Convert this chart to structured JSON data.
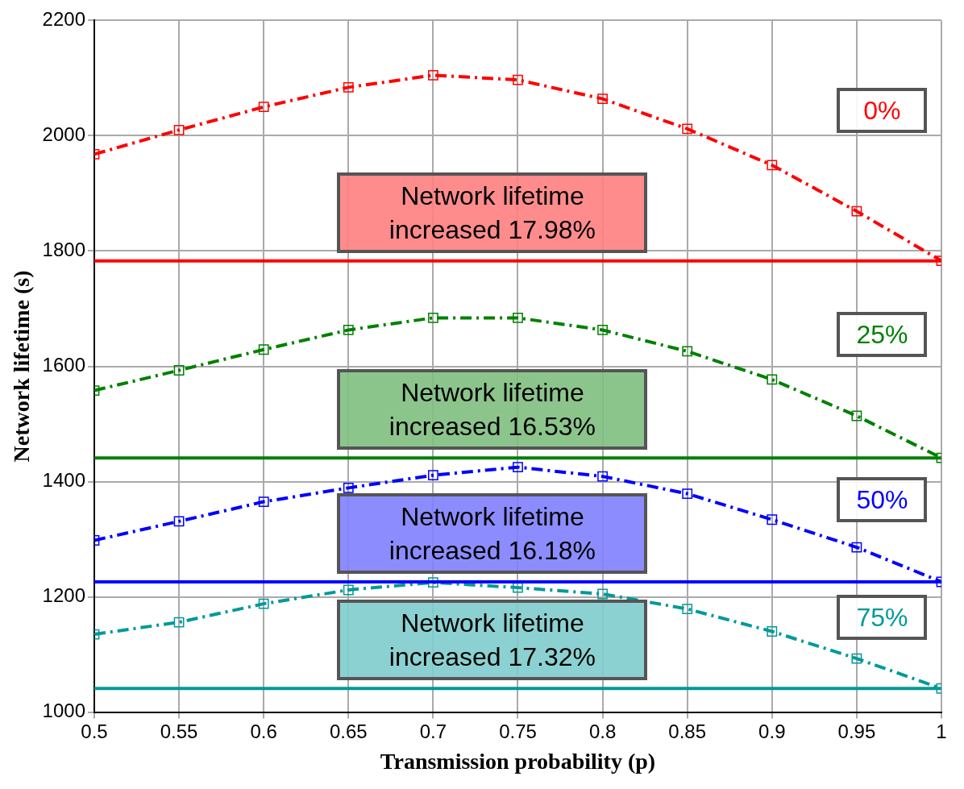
{
  "chart_data": {
    "type": "line",
    "xlabel": "Transmission probability (p)",
    "ylabel": "Network lifetime (s)",
    "x": [
      0.5,
      0.55,
      0.6,
      0.65,
      0.7,
      0.75,
      0.8,
      0.85,
      0.9,
      0.95,
      1
    ],
    "series": [
      {
        "name": "0%",
        "color": "#ff0000",
        "values": [
          1968,
          2010,
          2050,
          2084,
          2105,
          2097,
          2064,
          2012,
          1949,
          1869,
          1783
        ]
      },
      {
        "name": "25%",
        "color": "#008000",
        "values": [
          1558,
          1593,
          1629,
          1663,
          1684,
          1684,
          1663,
          1626,
          1577,
          1514,
          1441
        ]
      },
      {
        "name": "50%",
        "color": "#0000ff",
        "values": [
          1298,
          1331,
          1365,
          1389,
          1411,
          1425,
          1409,
          1379,
          1334,
          1286,
          1226
        ]
      },
      {
        "name": "75%",
        "color": "#009999",
        "values": [
          1135,
          1156,
          1188,
          1212,
          1225,
          1216,
          1205,
          1179,
          1140,
          1093,
          1041
        ]
      }
    ],
    "ref_lines": [
      {
        "axis": "y",
        "value": 1783,
        "color": "#ff0000"
      },
      {
        "axis": "y",
        "value": 1441,
        "color": "#008000"
      },
      {
        "axis": "y",
        "value": 1226,
        "color": "#0000ff"
      },
      {
        "axis": "y",
        "value": 1041,
        "color": "#009999"
      }
    ],
    "annotations": [
      "Network lifetime increased 17.98%",
      "Network lifetime increased 16.53%",
      "Network lifetime increased 16.18%",
      "Network lifetime increased 17.32%"
    ],
    "xlim": [
      0.5,
      1
    ],
    "xticks": [
      0.5,
      0.55,
      0.6,
      0.65,
      0.7,
      0.75,
      0.8,
      0.85,
      0.9,
      0.95,
      1
    ],
    "ylim": [
      1000,
      2200
    ],
    "yticks": [
      1000,
      1200,
      1400,
      1600,
      1800,
      2000,
      2200
    ],
    "grid": true,
    "legend": false,
    "marker": "square",
    "line_style": "dashed"
  }
}
